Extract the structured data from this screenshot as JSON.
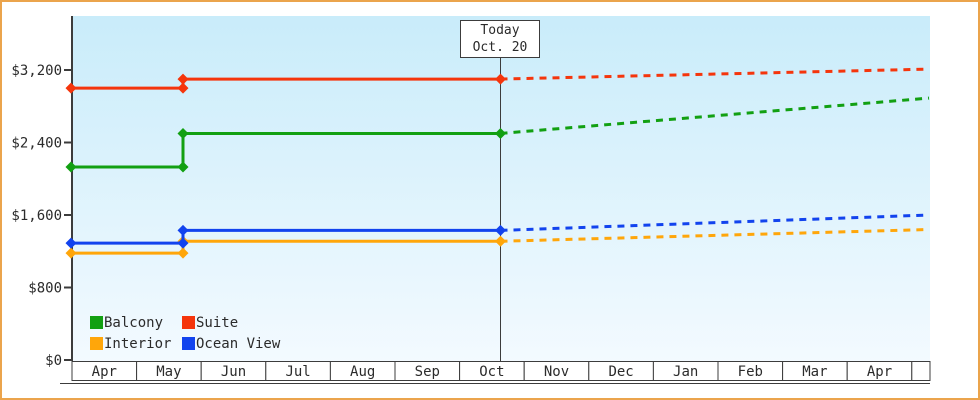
{
  "window": {
    "border_color": "#EBA44C",
    "background": "#FFFFFF"
  },
  "chart_data": {
    "type": "line",
    "title": "",
    "description": "Cabin price history (solid) and forecast (dashed) by cabin type",
    "plot_bg_top": "#C9ECFA",
    "plot_bg_bottom": "#F3FAFF",
    "axis_color": "#3C3C3C",
    "y_axis": {
      "tick_values": [
        0,
        800,
        1600,
        2400,
        3200
      ],
      "tick_labels": [
        "$0",
        "$800",
        "$1,600",
        "$2,400",
        "$3,200"
      ],
      "ylim": [
        0,
        3800
      ]
    },
    "x_axis": {
      "categories": [
        "Apr",
        "May",
        "Jun",
        "Jul",
        "Aug",
        "Sep",
        "Oct",
        "Nov",
        "Dec",
        "Jan",
        "Feb",
        "Mar",
        "Apr"
      ]
    },
    "today_marker": {
      "line1": "Today",
      "line2": "Oct. 20"
    },
    "series": [
      {
        "name": "Balcony",
        "color": "#12A012",
        "history": [
          {
            "t": "start",
            "value": 2130
          },
          {
            "t": "step",
            "value": 2130
          },
          {
            "t": "step",
            "value": 2500
          },
          {
            "t": "today",
            "value": 2500
          }
        ],
        "forecast": [
          {
            "t": "today",
            "value": 2500
          },
          {
            "t": "end",
            "value": 2890
          }
        ]
      },
      {
        "name": "Suite",
        "color": "#F5350C",
        "history": [
          {
            "t": "start",
            "value": 3000
          },
          {
            "t": "step",
            "value": 3000
          },
          {
            "t": "step",
            "value": 3100
          },
          {
            "t": "today",
            "value": 3100
          }
        ],
        "forecast": [
          {
            "t": "today",
            "value": 3100
          },
          {
            "t": "end",
            "value": 3210
          }
        ]
      },
      {
        "name": "Interior",
        "color": "#FFA60A",
        "history": [
          {
            "t": "start",
            "value": 1180
          },
          {
            "t": "step",
            "value": 1180
          },
          {
            "t": "step",
            "value": 1310
          },
          {
            "t": "today",
            "value": 1310
          }
        ],
        "forecast": [
          {
            "t": "today",
            "value": 1310
          },
          {
            "t": "end",
            "value": 1440
          }
        ]
      },
      {
        "name": "Ocean View",
        "color": "#1243EE",
        "history": [
          {
            "t": "start",
            "value": 1290
          },
          {
            "t": "step",
            "value": 1290
          },
          {
            "t": "step",
            "value": 1430
          },
          {
            "t": "today",
            "value": 1430
          }
        ],
        "forecast": [
          {
            "t": "today",
            "value": 1430
          },
          {
            "t": "end",
            "value": 1600
          }
        ]
      }
    ]
  }
}
